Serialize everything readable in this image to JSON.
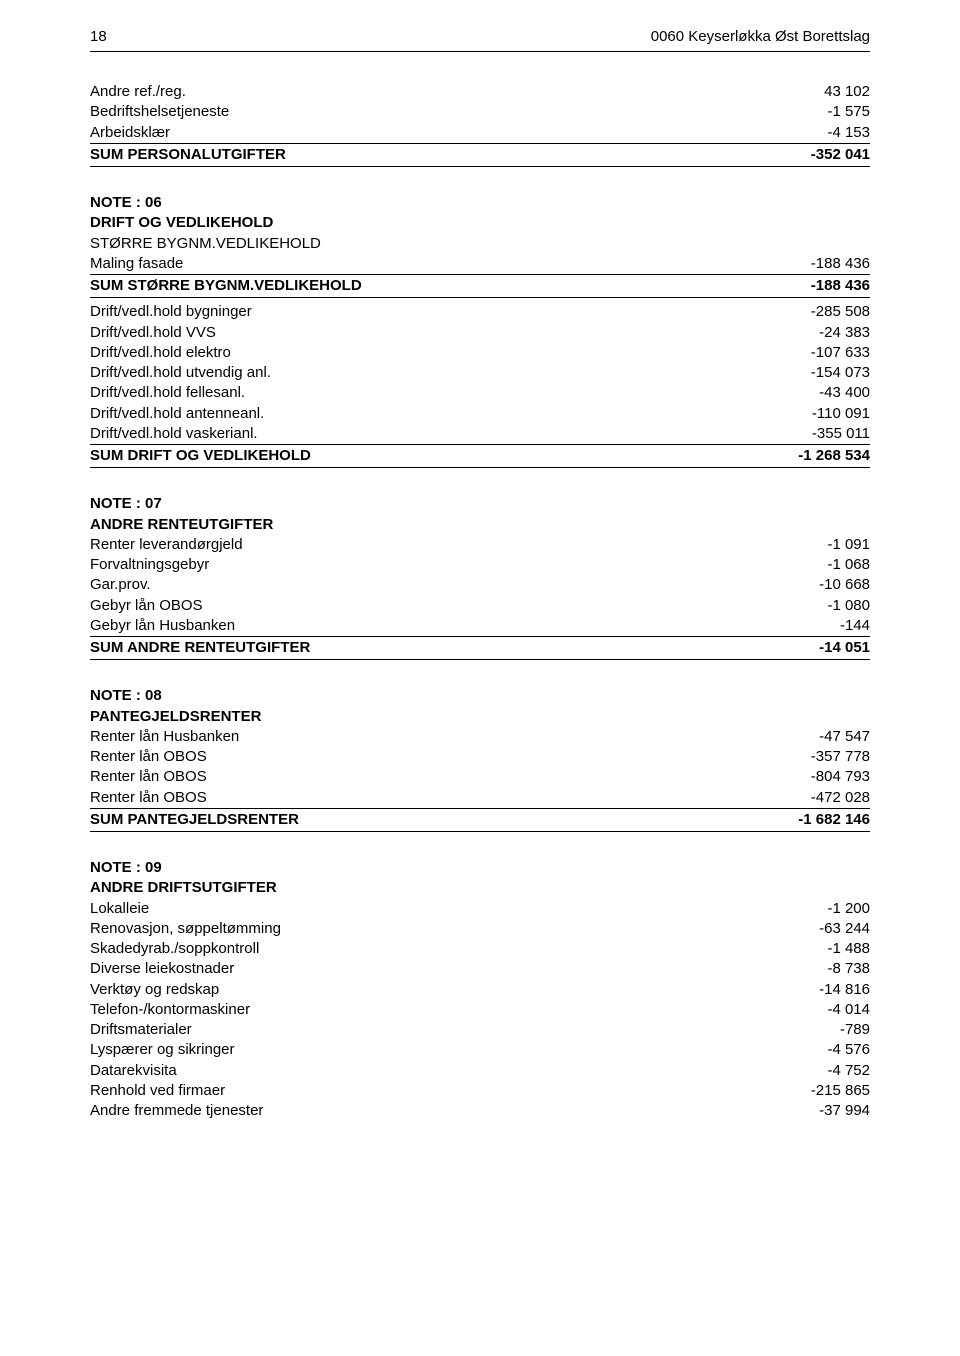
{
  "header": {
    "page_number": "18",
    "doc_title": "0060 Keyserløkka Øst Borettslag"
  },
  "section_top": [
    {
      "label": "Andre ref./reg.",
      "value": "43 102"
    },
    {
      "label": "Bedriftshelsetjeneste",
      "value": "-1 575"
    },
    {
      "label": "Arbeidsklær",
      "value": "-4 153"
    }
  ],
  "section_top_sum": {
    "label": "SUM PERSONALUTGIFTER",
    "value": "-352 041"
  },
  "note06": {
    "title1": "NOTE : 06",
    "title2": "DRIFT OG VEDLIKEHOLD",
    "subgroup_label": "STØRRE BYGNM.VEDLIKEHOLD",
    "subgroup_items": [
      {
        "label": "Maling fasade",
        "value": "-188 436"
      }
    ],
    "subgroup_sum": {
      "label": "SUM STØRRE BYGNM.VEDLIKEHOLD",
      "value": "-188 436"
    },
    "items": [
      {
        "label": "Drift/vedl.hold bygninger",
        "value": "-285 508"
      },
      {
        "label": "Drift/vedl.hold VVS",
        "value": "-24 383"
      },
      {
        "label": "Drift/vedl.hold elektro",
        "value": "-107 633"
      },
      {
        "label": "Drift/vedl.hold utvendig anl.",
        "value": "-154 073"
      },
      {
        "label": "Drift/vedl.hold fellesanl.",
        "value": "-43 400"
      },
      {
        "label": "Drift/vedl.hold antenneanl.",
        "value": "-110 091"
      },
      {
        "label": "Drift/vedl.hold vaskerianl.",
        "value": "-355 011"
      }
    ],
    "sum": {
      "label": "SUM DRIFT OG VEDLIKEHOLD",
      "value": "-1 268 534"
    }
  },
  "note07": {
    "title1": "NOTE : 07",
    "title2": "ANDRE RENTEUTGIFTER",
    "items": [
      {
        "label": "Renter leverandørgjeld",
        "value": "-1 091"
      },
      {
        "label": "Forvaltningsgebyr",
        "value": "-1 068"
      },
      {
        "label": "Gar.prov.",
        "value": "-10 668"
      },
      {
        "label": "Gebyr lån OBOS",
        "value": "-1 080"
      },
      {
        "label": "Gebyr lån Husbanken",
        "value": "-144"
      }
    ],
    "sum": {
      "label": "SUM ANDRE RENTEUTGIFTER",
      "value": "-14 051"
    }
  },
  "note08": {
    "title1": "NOTE : 08",
    "title2": "PANTEGJELDSRENTER",
    "items": [
      {
        "label": "Renter lån Husbanken",
        "value": "-47 547"
      },
      {
        "label": "Renter lån OBOS",
        "value": "-357 778"
      },
      {
        "label": "Renter lån OBOS",
        "value": "-804 793"
      },
      {
        "label": "Renter lån OBOS",
        "value": "-472 028"
      }
    ],
    "sum": {
      "label": "SUM PANTEGJELDSRENTER",
      "value": "-1 682 146"
    }
  },
  "note09": {
    "title1": "NOTE : 09",
    "title2": "ANDRE DRIFTSUTGIFTER",
    "items": [
      {
        "label": "Lokalleie",
        "value": "-1 200"
      },
      {
        "label": "Renovasjon, søppeltømming",
        "value": "-63 244"
      },
      {
        "label": "Skadedyrab./soppkontroll",
        "value": "-1 488"
      },
      {
        "label": "Diverse leiekostnader",
        "value": "-8 738"
      },
      {
        "label": "Verktøy og redskap",
        "value": "-14 816"
      },
      {
        "label": "Telefon-/kontormaskiner",
        "value": "-4 014"
      },
      {
        "label": "Driftsmaterialer",
        "value": "-789"
      },
      {
        "label": "Lyspærer og sikringer",
        "value": "-4 576"
      },
      {
        "label": "Datarekvisita",
        "value": "-4 752"
      },
      {
        "label": "Renhold ved firmaer",
        "value": "-215 865"
      },
      {
        "label": "Andre fremmede tjenester",
        "value": "-37 994"
      }
    ]
  }
}
